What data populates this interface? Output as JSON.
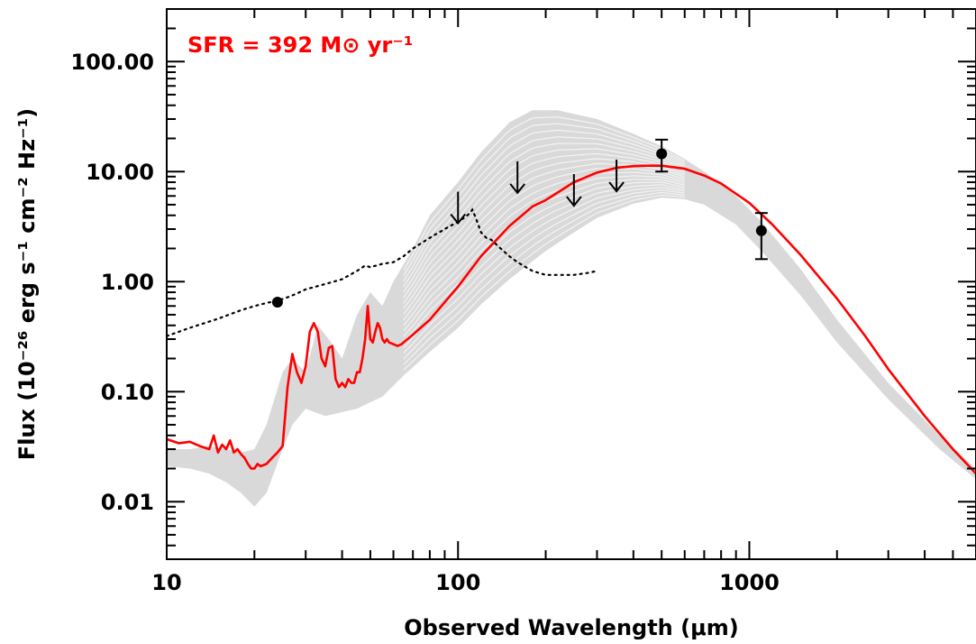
{
  "chart_data": {
    "type": "line",
    "xlabel": "Observed Wavelength (μm)",
    "ylabel": "Flux (10⁻²⁶ erg s⁻¹ cm⁻² Hz⁻¹)",
    "annotation": "SFR = 392 M⊙ yr⁻¹",
    "x_scale": "log",
    "y_scale": "log",
    "xlim": [
      10,
      6000
    ],
    "ylim": [
      0.003,
      300
    ],
    "x_ticks": [
      10,
      100,
      1000
    ],
    "x_tick_labels": [
      "10",
      "100",
      "1000"
    ],
    "y_ticks": [
      0.01,
      0.1,
      1,
      10,
      100
    ],
    "y_tick_labels": [
      "0.01",
      "0.10",
      "1.00",
      "10.00",
      "100.00"
    ],
    "colors": {
      "best_fit": "#ff0000",
      "template_band": "#d9d9d9",
      "template_lines": "#f4f4f4",
      "agn": "#000000",
      "points": "#000000"
    },
    "template_band": {
      "upper": [
        [
          10,
          0.03
        ],
        [
          12,
          0.03
        ],
        [
          14,
          0.032
        ],
        [
          16,
          0.03
        ],
        [
          18,
          0.028
        ],
        [
          20,
          0.03
        ],
        [
          22,
          0.05
        ],
        [
          25,
          0.15
        ],
        [
          27,
          0.2
        ],
        [
          30,
          0.15
        ],
        [
          33,
          0.4
        ],
        [
          36,
          0.3
        ],
        [
          40,
          0.2
        ],
        [
          45,
          0.5
        ],
        [
          50,
          0.8
        ],
        [
          55,
          0.6
        ],
        [
          60,
          1.0
        ],
        [
          70,
          2.0
        ],
        [
          80,
          4.0
        ],
        [
          100,
          8.0
        ],
        [
          120,
          15
        ],
        [
          150,
          28
        ],
        [
          180,
          36
        ],
        [
          220,
          36
        ],
        [
          300,
          30
        ],
        [
          400,
          22
        ],
        [
          500,
          17
        ],
        [
          600,
          13
        ],
        [
          700,
          10
        ],
        [
          900,
          6
        ],
        [
          1100,
          3.5
        ],
        [
          1500,
          1.3
        ],
        [
          2000,
          0.45
        ],
        [
          3000,
          0.12
        ],
        [
          4500,
          0.04
        ],
        [
          6000,
          0.02
        ]
      ],
      "lower": [
        [
          6000,
          0.016
        ],
        [
          4500,
          0.03
        ],
        [
          3000,
          0.085
        ],
        [
          2000,
          0.28
        ],
        [
          1500,
          0.75
        ],
        [
          1100,
          1.9
        ],
        [
          900,
          3.3
        ],
        [
          700,
          5.0
        ],
        [
          600,
          5.6
        ],
        [
          500,
          5.8
        ],
        [
          400,
          5.1
        ],
        [
          300,
          3.8
        ],
        [
          250,
          2.8
        ],
        [
          200,
          1.9
        ],
        [
          150,
          1.05
        ],
        [
          120,
          0.62
        ],
        [
          100,
          0.38
        ],
        [
          80,
          0.23
        ],
        [
          65,
          0.14
        ],
        [
          55,
          0.09
        ],
        [
          50,
          0.08
        ],
        [
          45,
          0.07
        ],
        [
          40,
          0.065
        ],
        [
          35,
          0.06
        ],
        [
          30,
          0.07
        ],
        [
          27,
          0.05
        ],
        [
          25,
          0.03
        ],
        [
          22,
          0.012
        ],
        [
          20,
          0.009
        ],
        [
          18,
          0.012
        ],
        [
          16,
          0.015
        ],
        [
          14,
          0.018
        ],
        [
          12,
          0.02
        ],
        [
          10,
          0.021
        ]
      ]
    },
    "series": [
      {
        "x": [
          10,
          11,
          12,
          13,
          14,
          14.5,
          15,
          15.5,
          16,
          16.5,
          17,
          17.5,
          18,
          18.5,
          19,
          19.5,
          20,
          20.5,
          21,
          22,
          23,
          24,
          25,
          26,
          27,
          28,
          29,
          30,
          31,
          32,
          33,
          34,
          35,
          36,
          37,
          38,
          39,
          40,
          41,
          42,
          43,
          44,
          45,
          46,
          47,
          48,
          49,
          50,
          51,
          52,
          53,
          54,
          55,
          56,
          57,
          58,
          60,
          62,
          64,
          65,
          70,
          80,
          100,
          120,
          150,
          180,
          200,
          250,
          300,
          350,
          400,
          450,
          500,
          600,
          700,
          800,
          1000,
          1200,
          1500,
          2000,
          2500,
          3000,
          4000,
          5000,
          6000
        ],
        "y": [
          0.037,
          0.034,
          0.035,
          0.032,
          0.03,
          0.04,
          0.028,
          0.033,
          0.03,
          0.036,
          0.028,
          0.03,
          0.027,
          0.025,
          0.022,
          0.02,
          0.02,
          0.022,
          0.021,
          0.022,
          0.025,
          0.028,
          0.032,
          0.11,
          0.22,
          0.15,
          0.12,
          0.17,
          0.35,
          0.42,
          0.35,
          0.2,
          0.17,
          0.25,
          0.26,
          0.13,
          0.11,
          0.12,
          0.11,
          0.13,
          0.12,
          0.12,
          0.15,
          0.15,
          0.2,
          0.3,
          0.6,
          0.3,
          0.28,
          0.35,
          0.42,
          0.38,
          0.3,
          0.28,
          0.3,
          0.28,
          0.27,
          0.26,
          0.27,
          0.28,
          0.33,
          0.45,
          0.9,
          1.7,
          3.2,
          4.8,
          5.5,
          8.0,
          9.8,
          10.8,
          11.2,
          11.3,
          11.3,
          10.6,
          9.2,
          7.8,
          5.2,
          3.3,
          1.75,
          0.7,
          0.32,
          0.16,
          0.06,
          0.03,
          0.018
        ]
      },
      {
        "x": [
          10,
          12,
          15,
          18,
          20,
          22,
          24,
          26,
          28,
          30,
          35,
          40,
          45,
          48,
          50,
          55,
          60,
          65,
          70,
          80,
          90,
          100,
          105,
          110,
          112,
          115,
          120,
          125,
          130,
          140,
          150,
          160,
          180,
          200,
          220,
          250,
          280,
          300
        ],
        "y": [
          0.32,
          0.38,
          0.46,
          0.55,
          0.6,
          0.64,
          0.67,
          0.72,
          0.78,
          0.85,
          0.95,
          1.05,
          1.25,
          1.4,
          1.35,
          1.45,
          1.5,
          1.7,
          2.0,
          2.5,
          3.0,
          3.5,
          3.8,
          4.2,
          4.5,
          3.8,
          2.8,
          2.5,
          2.4,
          2.0,
          1.7,
          1.5,
          1.25,
          1.15,
          1.15,
          1.15,
          1.2,
          1.25
        ]
      }
    ],
    "points": [
      {
        "x": 24,
        "y": 0.65
      },
      {
        "x": 500,
        "y": 14.5,
        "yerr_low": 10.0,
        "yerr_high": 19.5
      },
      {
        "x": 1100,
        "y": 2.9,
        "yerr_low": 1.6,
        "yerr_high": 4.2
      }
    ],
    "upper_limits": [
      {
        "x": 100,
        "y": 4.5
      },
      {
        "x": 160,
        "y": 8.5
      },
      {
        "x": 250,
        "y": 6.5
      },
      {
        "x": 350,
        "y": 8.8
      }
    ]
  }
}
